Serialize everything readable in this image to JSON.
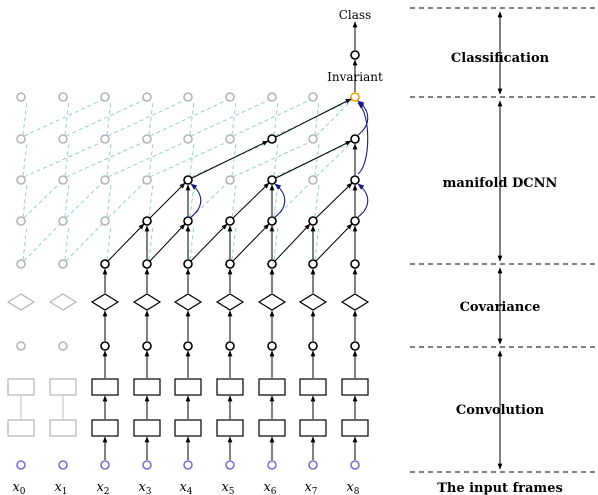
{
  "diagram": {
    "top_label": "Class",
    "invariant_label": "Invariant",
    "frame_labels": [
      "x0",
      "x1",
      "x2",
      "x3",
      "x4",
      "x5",
      "x6",
      "x7",
      "x8"
    ],
    "stages": [
      {
        "id": "classification",
        "label": "Classification"
      },
      {
        "id": "manifold",
        "label": "manifold DCNN"
      },
      {
        "id": "covariance",
        "label": "Covariance"
      },
      {
        "id": "convolution",
        "label": "Convolution"
      },
      {
        "id": "input",
        "label": "The input frames"
      }
    ],
    "colors": {
      "active": "#000000",
      "inactive": "#b4b4b4",
      "input_node": "#7b6fd6",
      "invariant_node": "#f0a500",
      "skip_arrow": "#1a1a7a",
      "dashed": "#8fc8c8"
    }
  }
}
